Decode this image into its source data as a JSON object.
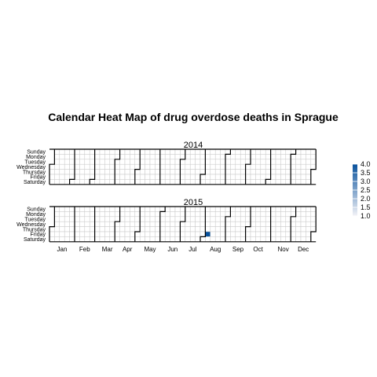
{
  "chart_data": {
    "type": "heatmap",
    "title": "Calendar Heat Map of drug overdose deaths in Sprague",
    "day_labels": [
      "Sunday",
      "Monday",
      "Tuesday",
      "Wednesday",
      "Thursday",
      "Friday",
      "Saturday"
    ],
    "month_labels": [
      "Jan",
      "Feb",
      "Mar",
      "Apr",
      "May",
      "Jun",
      "Jul",
      "Aug",
      "Sep",
      "Oct",
      "Nov",
      "Dec"
    ],
    "years": [
      "2014",
      "2015"
    ],
    "values": [
      {
        "date": "2015-08-07",
        "value": 4.0
      }
    ],
    "color_scale": {
      "low": "#f3f3f7",
      "high": "#08519c",
      "min": 1.0,
      "max": 4.0
    },
    "legend": {
      "position": "right",
      "ticks": [
        "4.0",
        "3.5",
        "3.0",
        "2.5",
        "2.0",
        "1.5",
        "1.0"
      ]
    },
    "grid": true
  }
}
